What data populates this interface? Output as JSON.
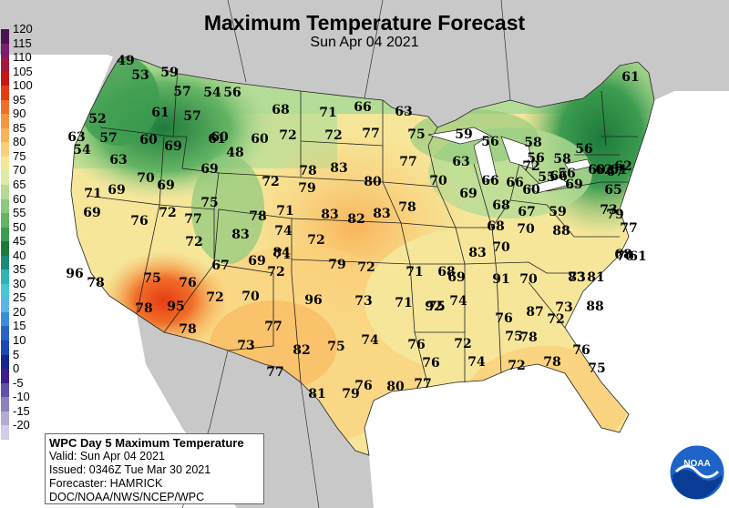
{
  "header": {
    "title": "Maximum Temperature Forecast",
    "subtitle": "Sun Apr 04 2021"
  },
  "legend": {
    "labels": [
      "120",
      "115",
      "110",
      "105",
      "100",
      "95",
      "90",
      "85",
      "80",
      "75",
      "70",
      "65",
      "60",
      "55",
      "50",
      "45",
      "40",
      "35",
      "30",
      "25",
      "20",
      "15",
      "10",
      "5",
      "0",
      "-5",
      "-10",
      "-15",
      "-20"
    ],
    "colors": [
      "#4a1452",
      "#7a1e6e",
      "#a01a3e",
      "#c81414",
      "#e63c14",
      "#f06e28",
      "#f59640",
      "#f8b45a",
      "#fbd07a",
      "#f6e69a",
      "#dcebaa",
      "#b4dc96",
      "#8cc87c",
      "#64b464",
      "#3c9c50",
      "#1e7a3c",
      "#1a8a78",
      "#30b4b4",
      "#46c8d2",
      "#5ab4e6",
      "#3c8cdc",
      "#2864c8",
      "#1e46b4",
      "#14288c",
      "#3c1e8c",
      "#6450a8",
      "#8c82c0",
      "#b4aad2",
      "#d2cce6"
    ]
  },
  "info_box": {
    "title": "WPC Day 5 Maximum Temperature",
    "valid": "Valid: Sun Apr 04 2021",
    "issued": "Issued: 0346Z Tue Mar 30 2021",
    "forecaster": "Forecaster: HAMRICK",
    "agency": "DOC/NOAA/NWS/NCEP/WPC"
  },
  "logo": {
    "text": "NOAA"
  },
  "temperatures": [
    "49",
    "53",
    "59",
    "57",
    "54",
    "56",
    "57",
    "61",
    "52",
    "57",
    "63",
    "60",
    "68",
    "71",
    "66",
    "63",
    "54",
    "63",
    "60",
    "69",
    "61",
    "60",
    "72",
    "72",
    "77",
    "75",
    "59",
    "56",
    "58",
    "61",
    "48",
    "69",
    "78",
    "83",
    "77",
    "63",
    "56",
    "66",
    "66",
    "58",
    "71",
    "69",
    "70",
    "69",
    "72",
    "79",
    "80",
    "70",
    "69",
    "60",
    "55",
    "56",
    "56",
    "60",
    "62",
    "61",
    "67",
    "75",
    "71",
    "83",
    "82",
    "83",
    "78",
    "69",
    "68",
    "67",
    "66",
    "62",
    "65",
    "73",
    "72",
    "69",
    "76",
    "72",
    "77",
    "78",
    "74",
    "68",
    "70",
    "59",
    "79",
    "77",
    "83",
    "72",
    "71",
    "69",
    "67",
    "83",
    "70",
    "88",
    "72",
    "84",
    "79",
    "72",
    "71",
    "68",
    "70",
    "61",
    "68",
    "96",
    "75",
    "72",
    "69",
    "91",
    "70",
    "81",
    "83",
    "78",
    "76",
    "72",
    "70",
    "96",
    "73",
    "71",
    "75",
    "74",
    "73",
    "95",
    "92",
    "87",
    "72",
    "73",
    "88",
    "78",
    "78",
    "77",
    "76",
    "75",
    "73",
    "82",
    "75",
    "74",
    "76",
    "72",
    "78",
    "76",
    "77",
    "76",
    "74",
    "72",
    "78",
    "75",
    "81",
    "79",
    "76",
    "80",
    "77"
  ],
  "colors": {
    "background_gray": "#c8c8c8",
    "water": "#ffffff"
  }
}
